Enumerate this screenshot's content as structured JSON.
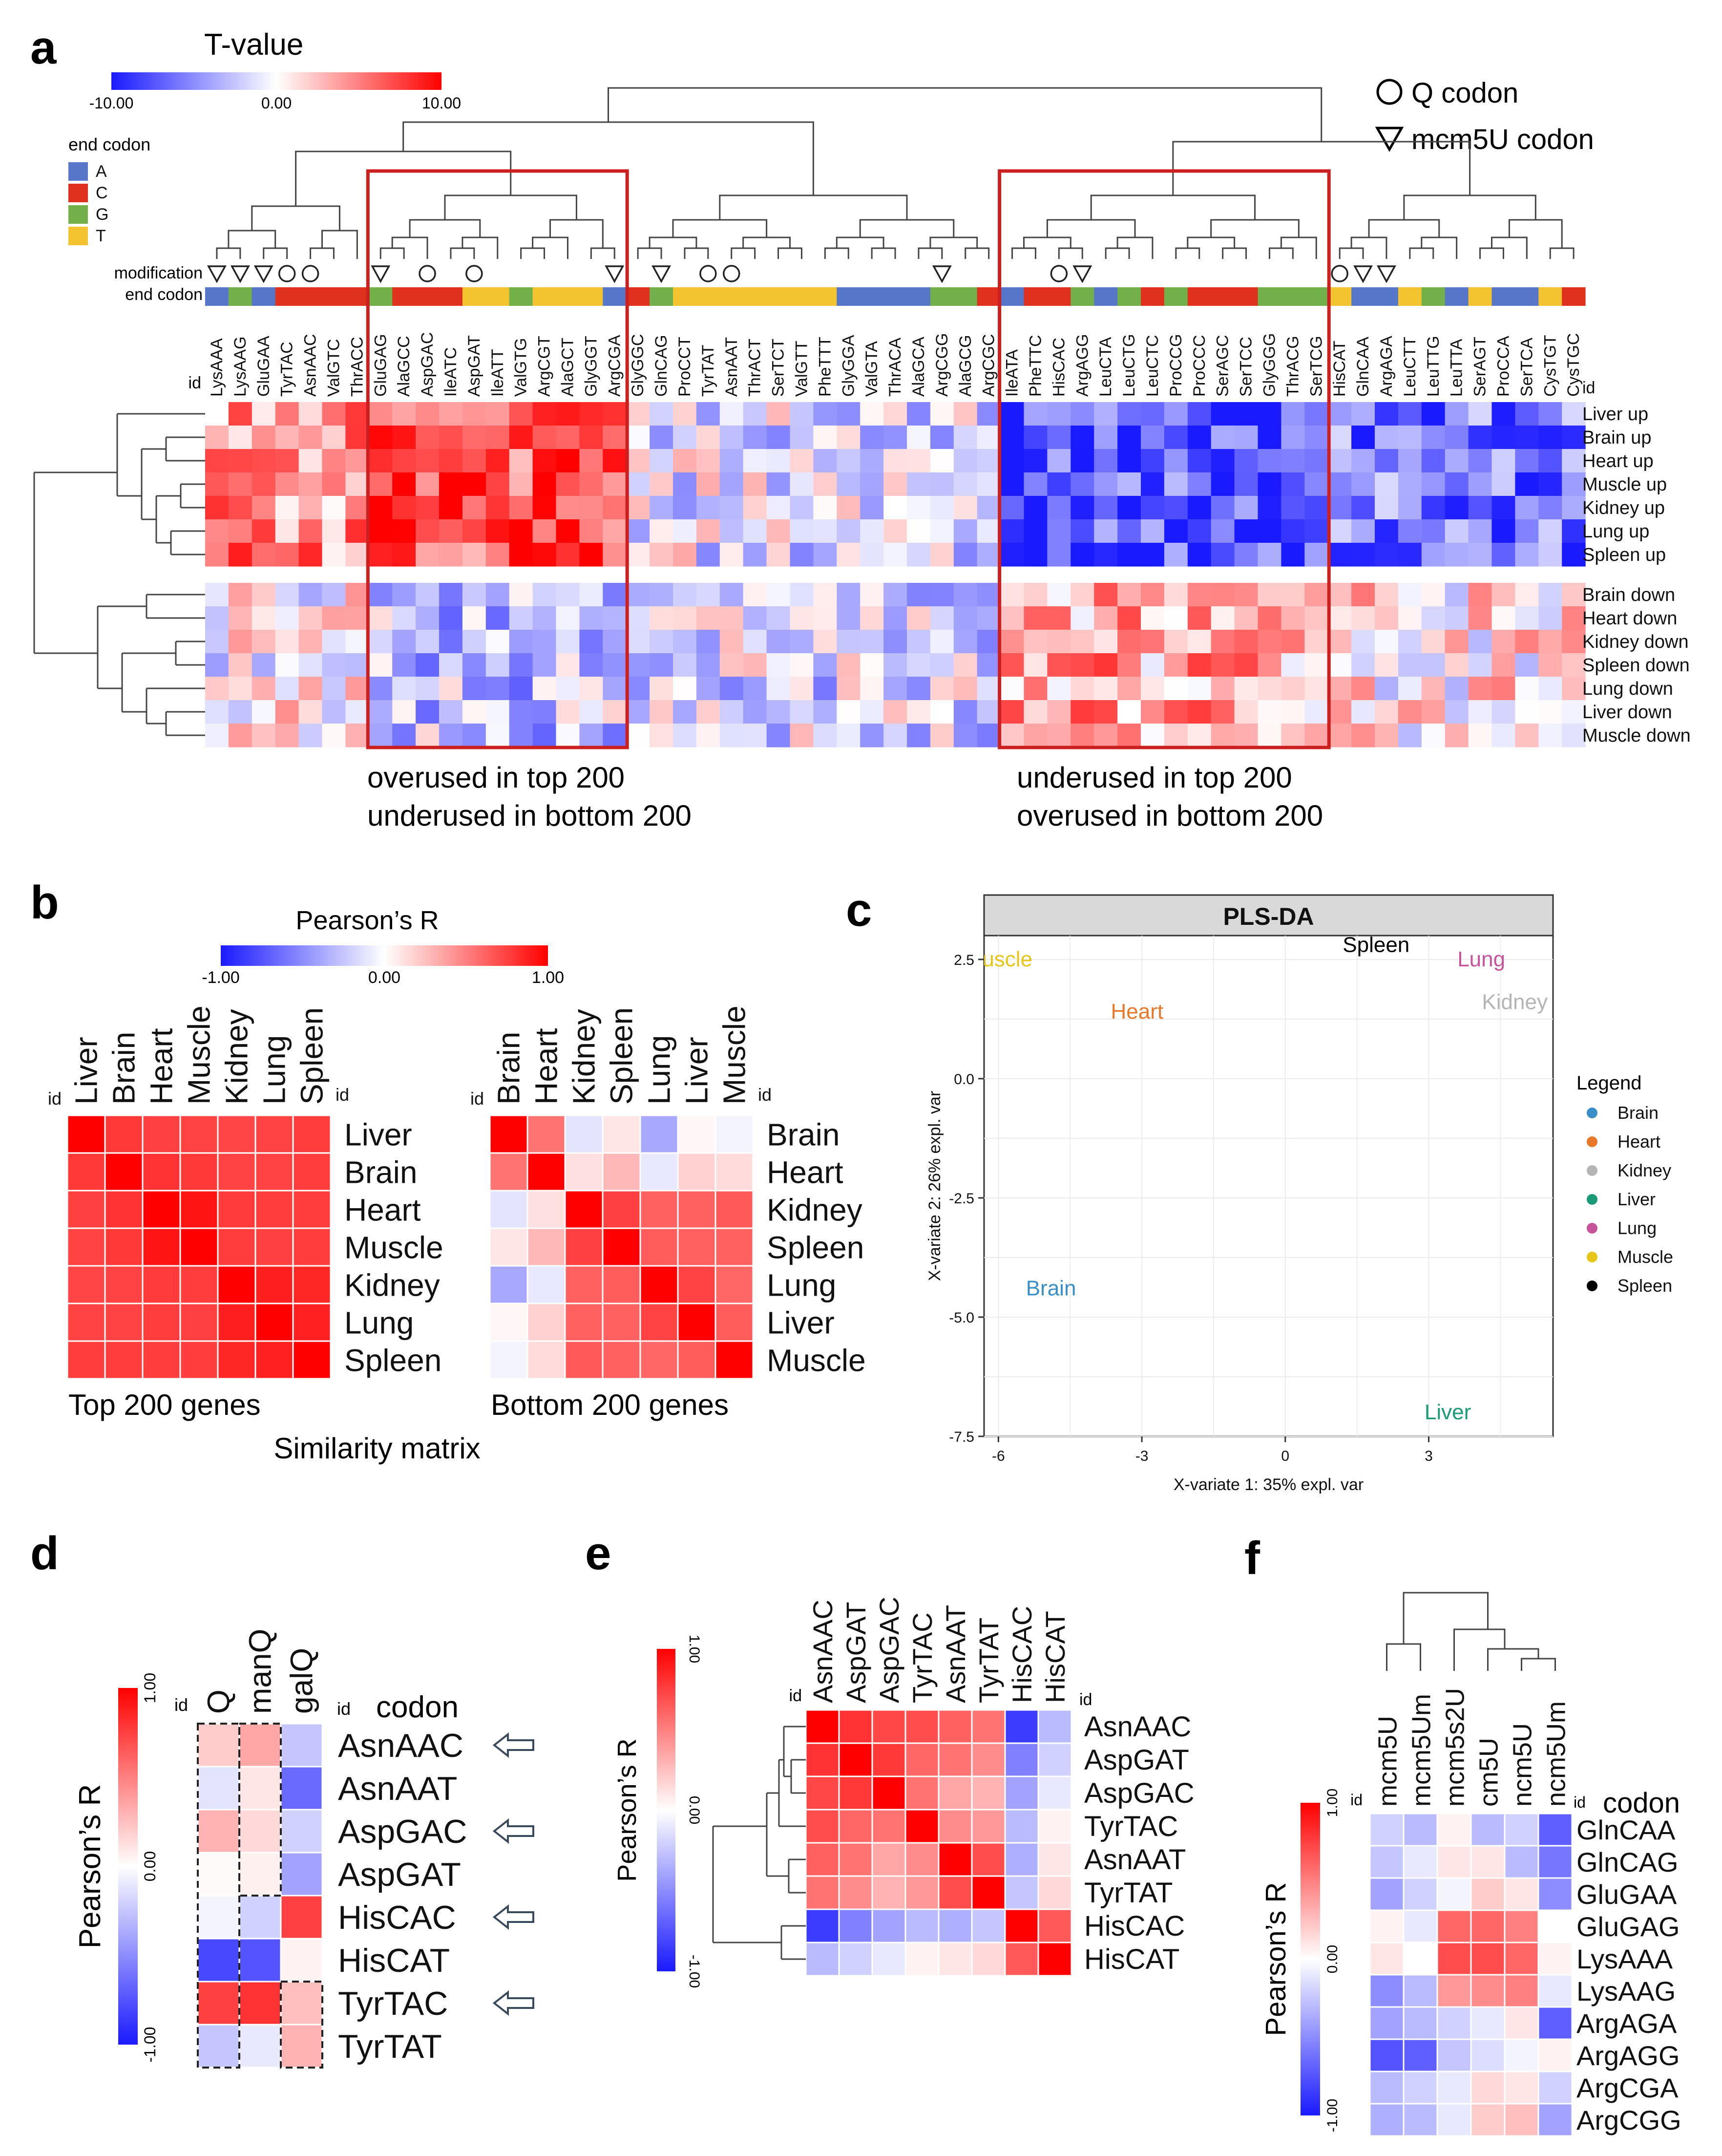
{
  "colors": {
    "neg": "#1a1aff",
    "mid": "#ffffff",
    "pos": "#ff0000",
    "box": "#cc2020",
    "end_A": "#5677c9",
    "end_C": "#e0301e",
    "end_G": "#72b04a",
    "end_T": "#f4c430"
  },
  "panel_a": {
    "label": "a",
    "tvalue_title": "T-value",
    "tvalue_ticks": [
      "-10.00",
      "0.00",
      "10.00"
    ],
    "end_codon_legend_title": "end codon",
    "end_codon_legend": [
      "A",
      "C",
      "G",
      "T"
    ],
    "row_modification_label": "modification",
    "row_end_codon_label": "end codon",
    "id_label": "id",
    "legend_q": "Q codon",
    "legend_mcm5u": "mcm5U codon",
    "box1_caption": [
      "overused in top 200",
      "underused in bottom 200"
    ],
    "box2_caption": [
      "underused in top 200",
      "overused in bottom 200"
    ]
  },
  "panel_b": {
    "label": "b",
    "legend_title": "Pearson’s R",
    "legend_ticks": [
      "-1.00",
      "0.00",
      "1.00"
    ],
    "id_label": "id",
    "top_caption": "Top 200 genes",
    "bottom_caption": "Bottom 200 genes",
    "matrix_caption": "Similarity matrix"
  },
  "panel_c": {
    "label": "c",
    "legend_title": "Legend"
  },
  "panel_d": {
    "label": "d",
    "legend_title": "Pearson’s R",
    "legend_ticks": [
      "1.00",
      "0.00",
      "-1.00"
    ],
    "id_label": "id",
    "codon_header": "codon"
  },
  "panel_e": {
    "label": "e",
    "legend_title": "Pearson’s R",
    "legend_ticks": [
      "1.00",
      "0.00",
      "-1.00"
    ],
    "id_label": "id"
  },
  "panel_f": {
    "label": "f",
    "legend_title": "Pearson’s R",
    "legend_ticks": [
      "1.00",
      "0.00",
      "-1.00"
    ],
    "id_label": "id",
    "codon_header": "codon"
  },
  "chart_data": [
    {
      "id": "a",
      "type": "heatmap",
      "title": "T-value",
      "value_range": [
        -10,
        10
      ],
      "columns": [
        "LysAAA",
        "LysAAG",
        "GluGAA",
        "TyrTAC",
        "AsnAAC",
        "ValGTC",
        "ThrACC",
        "GluGAG",
        "AlaGCC",
        "AspGAC",
        "IleATC",
        "AspGAT",
        "IleATT",
        "ValGTG",
        "ArgCGT",
        "AlaGCT",
        "GlyGGT",
        "ArgCGA",
        "GlyGGC",
        "GlnCAG",
        "ProCCT",
        "TyrTAT",
        "AsnAAT",
        "ThrACT",
        "SerTCT",
        "ValGTT",
        "PheTTT",
        "GlyGGA",
        "ValGTA",
        "ThrACA",
        "AlaGCA",
        "ArgCGG",
        "AlaGCG",
        "ArgCGC",
        "IleATA",
        "PheTTC",
        "HisCAC",
        "ArgAGG",
        "LeuCTA",
        "LeuCTG",
        "LeuCTC",
        "ProCCG",
        "ProCCC",
        "SerAGC",
        "SerTCC",
        "GlyGGG",
        "ThrACG",
        "SerTCG",
        "HisCAT",
        "GlnCAA",
        "ArgAGA",
        "LeuCTT",
        "LeuTTG",
        "LeuTTA",
        "SerAGT",
        "ProCCA",
        "SerTCA",
        "CysTGT",
        "CysTGC"
      ],
      "end_codon": [
        "A",
        "G",
        "A",
        "C",
        "C",
        "C",
        "C",
        "G",
        "C",
        "C",
        "C",
        "T",
        "T",
        "G",
        "T",
        "T",
        "T",
        "A",
        "C",
        "G",
        "T",
        "T",
        "T",
        "T",
        "T",
        "T",
        "T",
        "A",
        "A",
        "A",
        "A",
        "G",
        "G",
        "C",
        "A",
        "C",
        "C",
        "G",
        "A",
        "G",
        "C",
        "G",
        "C",
        "C",
        "C",
        "G",
        "G",
        "G",
        "T",
        "A",
        "A",
        "T",
        "G",
        "A",
        "T",
        "A",
        "A",
        "T",
        "C"
      ],
      "modification": [
        "mcm5U",
        "mcm5U",
        "mcm5U",
        "Q",
        "Q",
        "",
        "",
        "mcm5U",
        "",
        "Q",
        "",
        "Q",
        "",
        "",
        "",
        "",
        "",
        "mcm5U",
        "",
        "mcm5U",
        "",
        "Q",
        "Q",
        "",
        "",
        "",
        "",
        "",
        "",
        "",
        "",
        "mcm5U",
        "",
        "",
        "",
        "",
        "Q",
        "mcm5U",
        "",
        "",
        "",
        "",
        "",
        "",
        "",
        "",
        "",
        "",
        "Q",
        "mcm5U",
        "mcm5U",
        "",
        "",
        "",
        "",
        "",
        "",
        "",
        ""
      ],
      "rows": [
        "Liver up",
        "Brain up",
        "Heart up",
        "Muscle up",
        "Kidney up",
        "Lung up",
        "Spleen up",
        "Brain down",
        "Heart down",
        "Kidney down",
        "Spleen down",
        "Lung down",
        "Liver down",
        "Muscle down"
      ],
      "boxed_columns": [
        [
          "GluGAG",
          "ArgCGA"
        ],
        [
          "IleATA",
          "SerTCG"
        ]
      ]
    },
    {
      "id": "b-top",
      "type": "heatmap",
      "title": "Top 200 genes",
      "value_range": [
        -1,
        1
      ],
      "columns": [
        "Liver",
        "Brain",
        "Heart",
        "Muscle",
        "Kidney",
        "Lung",
        "Spleen"
      ],
      "rows": [
        "Liver",
        "Brain",
        "Heart",
        "Muscle",
        "Kidney",
        "Lung",
        "Spleen"
      ],
      "values": [
        [
          1.0,
          0.78,
          0.75,
          0.74,
          0.73,
          0.74,
          0.76
        ],
        [
          0.78,
          1.0,
          0.8,
          0.78,
          0.74,
          0.74,
          0.76
        ],
        [
          0.75,
          0.8,
          1.0,
          0.92,
          0.77,
          0.76,
          0.76
        ],
        [
          0.74,
          0.78,
          0.92,
          1.0,
          0.76,
          0.75,
          0.76
        ],
        [
          0.73,
          0.74,
          0.77,
          0.76,
          1.0,
          0.88,
          0.85
        ],
        [
          0.74,
          0.74,
          0.76,
          0.75,
          0.88,
          1.0,
          0.87
        ],
        [
          0.76,
          0.76,
          0.76,
          0.76,
          0.85,
          0.87,
          1.0
        ]
      ]
    },
    {
      "id": "b-bottom",
      "type": "heatmap",
      "title": "Bottom 200 genes",
      "value_range": [
        -1,
        1
      ],
      "columns": [
        "Brain",
        "Heart",
        "Kidney",
        "Spleen",
        "Lung",
        "Liver",
        "Muscle"
      ],
      "rows": [
        "Brain",
        "Heart",
        "Kidney",
        "Spleen",
        "Lung",
        "Liver",
        "Muscle"
      ],
      "values": [
        [
          1.0,
          0.55,
          -0.12,
          0.1,
          -0.38,
          0.03,
          -0.05
        ],
        [
          0.55,
          1.0,
          0.12,
          0.28,
          -0.1,
          0.18,
          0.14
        ],
        [
          -0.12,
          0.12,
          1.0,
          0.75,
          0.62,
          0.62,
          0.65
        ],
        [
          0.1,
          0.28,
          0.75,
          1.0,
          0.64,
          0.62,
          0.62
        ],
        [
          -0.38,
          -0.1,
          0.62,
          0.64,
          1.0,
          0.74,
          0.6
        ],
        [
          0.03,
          0.18,
          0.62,
          0.62,
          0.74,
          1.0,
          0.64
        ],
        [
          -0.05,
          0.14,
          0.65,
          0.62,
          0.6,
          0.64,
          1.0
        ]
      ]
    },
    {
      "id": "c",
      "type": "scatter",
      "title": "PLS-DA",
      "xlabel": "X-variate 1: 35% expl. var",
      "ylabel": "X-variate 2: 26% expl. var",
      "xlim": [
        -6.3,
        5.6
      ],
      "ylim": [
        -7.5,
        3.0
      ],
      "xticks": [
        -6,
        -3,
        0,
        3
      ],
      "yticks": [
        2.5,
        0.0,
        -2.5,
        -5.0,
        -7.5
      ],
      "points": [
        {
          "label": "Muscle",
          "x": -6.0,
          "y": 2.5,
          "color": "#e6c619"
        },
        {
          "label": "Heart",
          "x": -3.1,
          "y": 1.4,
          "color": "#e8782a"
        },
        {
          "label": "Spleen",
          "x": 1.9,
          "y": 2.8,
          "color": "#000000"
        },
        {
          "label": "Lung",
          "x": 4.1,
          "y": 2.5,
          "color": "#c7549a"
        },
        {
          "label": "Kidney",
          "x": 4.8,
          "y": 1.6,
          "color": "#b5b5b5"
        },
        {
          "label": "Brain",
          "x": -4.9,
          "y": -4.4,
          "color": "#3a8fc9"
        },
        {
          "label": "Liver",
          "x": 3.4,
          "y": -7.0,
          "color": "#1b9a78"
        }
      ],
      "legend": [
        {
          "label": "Brain",
          "color": "#3a8fc9"
        },
        {
          "label": "Heart",
          "color": "#e8782a"
        },
        {
          "label": "Kidney",
          "color": "#b5b5b5"
        },
        {
          "label": "Liver",
          "color": "#1b9a78"
        },
        {
          "label": "Lung",
          "color": "#c7549a"
        },
        {
          "label": "Muscle",
          "color": "#e6c619"
        },
        {
          "label": "Spleen",
          "color": "#000000"
        }
      ]
    },
    {
      "id": "d",
      "type": "heatmap",
      "value_range": [
        -1,
        1
      ],
      "columns": [
        "Q",
        "manQ",
        "galQ"
      ],
      "rows": [
        "AsnAAC",
        "AsnAAT",
        "AspGAC",
        "AspGAT",
        "HisCAC",
        "HisCAT",
        "TyrTAC",
        "TyrTAT"
      ],
      "values": [
        [
          0.2,
          0.35,
          -0.25
        ],
        [
          -0.12,
          0.1,
          -0.65
        ],
        [
          0.3,
          0.15,
          -0.2
        ],
        [
          0.02,
          0.06,
          -0.4
        ],
        [
          -0.05,
          -0.2,
          0.75
        ],
        [
          -0.8,
          -0.75,
          0.05
        ],
        [
          0.75,
          0.8,
          0.25
        ],
        [
          -0.25,
          -0.1,
          0.3
        ]
      ],
      "arrow_rows": [
        "AsnAAC",
        "AspGAC",
        "HisCAC",
        "TyrTAC"
      ]
    },
    {
      "id": "e",
      "type": "heatmap",
      "value_range": [
        -1,
        1
      ],
      "columns": [
        "AsnAAC",
        "AspGAT",
        "AspGAC",
        "TyrTAC",
        "AsnAAT",
        "TyrTAT",
        "HisCAC",
        "HisCAT"
      ],
      "rows": [
        "AsnAAC",
        "AspGAT",
        "AspGAC",
        "TyrTAC",
        "AsnAAT",
        "TyrTAT",
        "HisCAC",
        "HisCAT"
      ],
      "values": [
        [
          1.0,
          0.8,
          0.72,
          0.7,
          0.62,
          0.55,
          -0.85,
          -0.3
        ],
        [
          0.8,
          1.0,
          0.78,
          0.6,
          0.55,
          0.45,
          -0.55,
          -0.2
        ],
        [
          0.72,
          0.78,
          1.0,
          0.55,
          0.35,
          0.3,
          -0.4,
          -0.1
        ],
        [
          0.7,
          0.6,
          0.55,
          1.0,
          0.45,
          0.4,
          -0.3,
          0.05
        ],
        [
          0.62,
          0.55,
          0.35,
          0.45,
          1.0,
          0.7,
          -0.35,
          0.1
        ],
        [
          0.55,
          0.45,
          0.3,
          0.4,
          0.7,
          1.0,
          -0.25,
          0.15
        ],
        [
          -0.85,
          -0.55,
          -0.4,
          -0.3,
          -0.35,
          -0.25,
          1.0,
          0.65
        ],
        [
          -0.3,
          -0.2,
          -0.1,
          0.05,
          0.1,
          0.15,
          0.65,
          1.0
        ]
      ]
    },
    {
      "id": "f",
      "type": "heatmap",
      "value_range": [
        -1,
        1
      ],
      "columns": [
        "mcm5U",
        "mcm5Um",
        "mcm5s2U",
        "cm5U",
        "ncm5U",
        "ncm5Um"
      ],
      "rows": [
        "GlnCAA",
        "GlnCAG",
        "GluGAA",
        "GluGAG",
        "LysAAA",
        "LysAAG",
        "ArgAGA",
        "ArgAGG",
        "ArgCGA",
        "ArgCGG"
      ],
      "values": [
        [
          -0.2,
          -0.3,
          0.05,
          -0.3,
          -0.2,
          -0.7
        ],
        [
          -0.25,
          -0.1,
          0.1,
          0.1,
          -0.3,
          -0.6
        ],
        [
          -0.4,
          -0.2,
          -0.05,
          0.2,
          0.1,
          -0.5
        ],
        [
          0.05,
          -0.1,
          0.6,
          0.6,
          0.5,
          0.0
        ],
        [
          0.1,
          0.0,
          0.7,
          0.7,
          0.6,
          0.05
        ],
        [
          -0.5,
          -0.3,
          0.4,
          0.45,
          0.5,
          -0.1
        ],
        [
          -0.4,
          -0.3,
          -0.2,
          -0.1,
          0.1,
          -0.7
        ],
        [
          -0.75,
          -0.7,
          -0.25,
          -0.15,
          -0.05,
          0.05
        ],
        [
          -0.3,
          -0.2,
          -0.1,
          0.15,
          0.1,
          -0.2
        ],
        [
          -0.35,
          -0.3,
          -0.1,
          0.2,
          0.25,
          -0.4
        ]
      ]
    }
  ]
}
